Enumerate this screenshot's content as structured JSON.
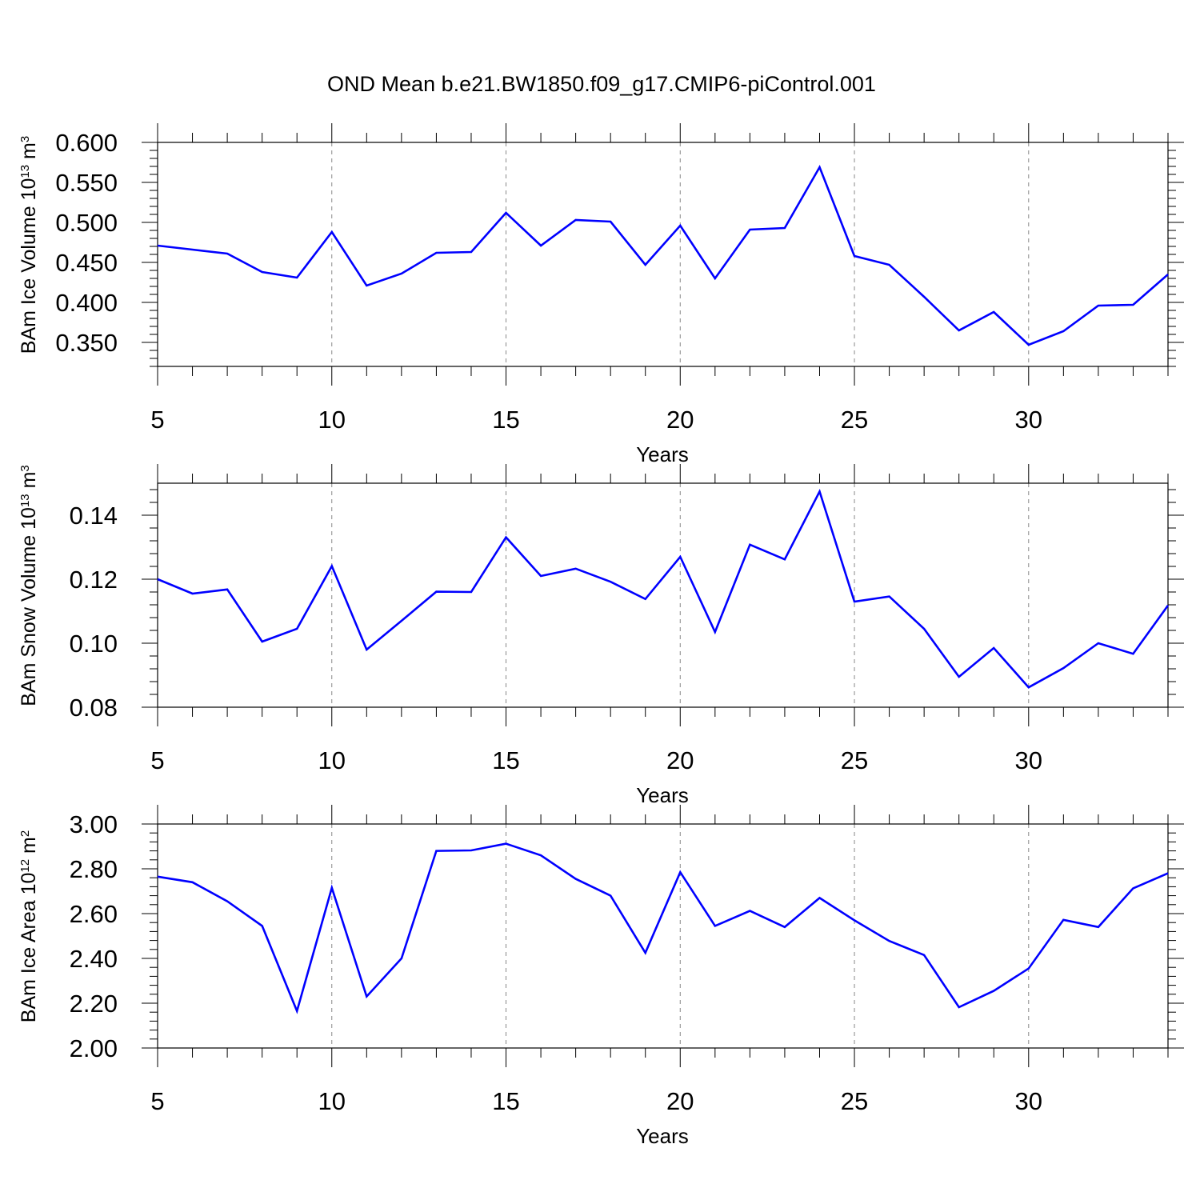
{
  "title": "OND Mean b.e21.BW1850.f09_g17.CMIP6-piControl.001",
  "chart_data": [
    {
      "type": "line",
      "ylabel": "BAm Ice Volume 10",
      "ylabel_sup": "13",
      "ylabel_unit": " m",
      "ylabel_unit_sup": "3",
      "xlabel": "Years",
      "xlim": [
        5,
        34
      ],
      "ylim": [
        0.32,
        0.6
      ],
      "x_ticks": [
        5,
        10,
        15,
        20,
        25,
        30
      ],
      "x_tick_labels": [
        "5",
        "10",
        "15",
        "20",
        "25",
        "30"
      ],
      "y_ticks": [
        0.35,
        0.4,
        0.45,
        0.5,
        0.55,
        0.6
      ],
      "y_tick_labels": [
        "0.350",
        "0.400",
        "0.450",
        "0.500",
        "0.550",
        "0.600"
      ],
      "line_color": "#0000ff",
      "x": [
        5,
        6,
        7,
        8,
        9,
        10,
        11,
        12,
        13,
        14,
        15,
        16,
        17,
        18,
        19,
        20,
        21,
        22,
        23,
        24,
        25,
        26,
        27,
        28,
        29,
        30,
        31,
        32,
        33,
        34
      ],
      "values": [
        0.471,
        0.466,
        0.461,
        0.438,
        0.431,
        0.488,
        0.421,
        0.436,
        0.462,
        0.463,
        0.512,
        0.471,
        0.503,
        0.501,
        0.447,
        0.496,
        0.43,
        0.491,
        0.493,
        0.569,
        0.458,
        0.447,
        0.407,
        0.365,
        0.388,
        0.347,
        0.364,
        0.396,
        0.397,
        0.435
      ]
    },
    {
      "type": "line",
      "ylabel": "BAm Snow Volume 10",
      "ylabel_sup": "13",
      "ylabel_unit": " m",
      "ylabel_unit_sup": "3",
      "xlabel": "Years",
      "xlim": [
        5,
        34
      ],
      "ylim": [
        0.08,
        0.15
      ],
      "x_ticks": [
        5,
        10,
        15,
        20,
        25,
        30
      ],
      "x_tick_labels": [
        "5",
        "10",
        "15",
        "20",
        "25",
        "30"
      ],
      "y_ticks": [
        0.08,
        0.1,
        0.12,
        0.14
      ],
      "y_tick_labels": [
        "0.08",
        "0.10",
        "0.12",
        "0.14"
      ],
      "line_color": "#0000ff",
      "x": [
        5,
        6,
        7,
        8,
        9,
        10,
        11,
        12,
        13,
        14,
        15,
        16,
        17,
        18,
        19,
        20,
        21,
        22,
        23,
        24,
        25,
        26,
        27,
        28,
        29,
        30,
        31,
        32,
        33,
        34
      ],
      "values": [
        0.12,
        0.1155,
        0.1168,
        0.1005,
        0.1045,
        0.1241,
        0.098,
        0.107,
        0.1161,
        0.116,
        0.1331,
        0.121,
        0.1233,
        0.1192,
        0.1138,
        0.127,
        0.1035,
        0.1308,
        0.1262,
        0.1474,
        0.113,
        0.1146,
        0.1045,
        0.0895,
        0.0985,
        0.0862,
        0.0922,
        0.1,
        0.0967,
        0.1118
      ]
    },
    {
      "type": "line",
      "ylabel": "BAm Ice Area 10",
      "ylabel_sup": "12",
      "ylabel_unit": " m",
      "ylabel_unit_sup": "2",
      "xlabel": "Years",
      "xlim": [
        5,
        34
      ],
      "ylim": [
        2.0,
        3.0
      ],
      "x_ticks": [
        5,
        10,
        15,
        20,
        25,
        30
      ],
      "x_tick_labels": [
        "5",
        "10",
        "15",
        "20",
        "25",
        "30"
      ],
      "y_ticks": [
        2.0,
        2.2,
        2.4,
        2.6,
        2.8,
        3.0
      ],
      "y_tick_labels": [
        "2.00",
        "2.20",
        "2.40",
        "2.60",
        "2.80",
        "3.00"
      ],
      "line_color": "#0000ff",
      "x": [
        5,
        6,
        7,
        8,
        9,
        10,
        11,
        12,
        13,
        14,
        15,
        16,
        17,
        18,
        19,
        20,
        21,
        22,
        23,
        24,
        25,
        26,
        27,
        28,
        29,
        30,
        31,
        32,
        33,
        34
      ],
      "values": [
        2.765,
        2.74,
        2.655,
        2.545,
        2.165,
        2.715,
        2.23,
        2.4,
        2.88,
        2.882,
        2.912,
        2.86,
        2.755,
        2.68,
        2.425,
        2.785,
        2.545,
        2.612,
        2.54,
        2.67,
        2.57,
        2.478,
        2.415,
        2.182,
        2.255,
        2.355,
        2.572,
        2.54,
        2.713,
        2.78
      ]
    }
  ]
}
